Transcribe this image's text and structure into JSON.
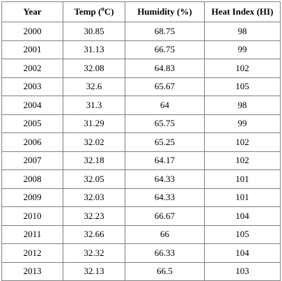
{
  "table": {
    "headers": {
      "year": "Year",
      "temp_prefix": "Temp (",
      "temp_degree": "o",
      "temp_suffix": "C)",
      "humidity": "Humidity (%)",
      "heat_index": "Heat Index (HI)"
    },
    "rows": [
      {
        "year": "2000",
        "temp": "30.85",
        "humidity": "68.75",
        "hi": "98"
      },
      {
        "year": "2001",
        "temp": "31.13",
        "humidity": "66.75",
        "hi": "99"
      },
      {
        "year": "2002",
        "temp": "32.08",
        "humidity": "64.83",
        "hi": "102"
      },
      {
        "year": "2003",
        "temp": "32.6",
        "humidity": "65.67",
        "hi": "105"
      },
      {
        "year": "2004",
        "temp": "31.3",
        "humidity": "64",
        "hi": "98"
      },
      {
        "year": "2005",
        "temp": "31.29",
        "humidity": "65.75",
        "hi": "99"
      },
      {
        "year": "2006",
        "temp": "32.02",
        "humidity": "65.25",
        "hi": "102"
      },
      {
        "year": "2007",
        "temp": "32.18",
        "humidity": "64.17",
        "hi": "102"
      },
      {
        "year": "2008",
        "temp": "32.05",
        "humidity": "64.33",
        "hi": "101"
      },
      {
        "year": "2009",
        "temp": "32.03",
        "humidity": "64.33",
        "hi": "101"
      },
      {
        "year": "2010",
        "temp": "32.23",
        "humidity": "66.67",
        "hi": "104"
      },
      {
        "year": "2011",
        "temp": "32.66",
        "humidity": "66",
        "hi": "105"
      },
      {
        "year": "2012",
        "temp": "32.32",
        "humidity": "66.33",
        "hi": "104"
      },
      {
        "year": "2013",
        "temp": "32.13",
        "humidity": "66.5",
        "hi": "103"
      }
    ]
  }
}
